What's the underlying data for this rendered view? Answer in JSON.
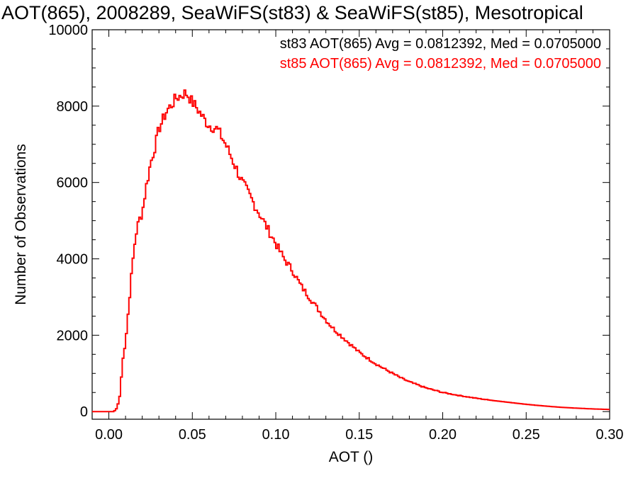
{
  "chart_data": {
    "type": "histogram",
    "title": "AOT(865), 2008289, SeaWiFS(st83) & SeaWiFS(st85), Mesotropical",
    "xlabel": "AOT ()",
    "ylabel": "Number of Observations",
    "xlim": [
      -0.01,
      0.3
    ],
    "ylim": [
      -200,
      10000
    ],
    "x_ticks": [
      0.0,
      0.05,
      0.1,
      0.15,
      0.2,
      0.25,
      0.3
    ],
    "x_tick_labels": [
      "0.00",
      "0.05",
      "0.10",
      "0.15",
      "0.20",
      "0.25",
      "0.30"
    ],
    "y_ticks": [
      0,
      2000,
      4000,
      6000,
      8000,
      10000
    ],
    "y_tick_labels": [
      "0",
      "2000",
      "4000",
      "6000",
      "8000",
      "10000"
    ],
    "grid": false,
    "annotations": [
      {
        "text": "st83 AOT(865) Avg = 0.0812392, Med = 0.0705000",
        "color": "#000000"
      },
      {
        "text": "st85 AOT(865) Avg = 0.0812392, Med = 0.0705000",
        "color": "#ff0000"
      }
    ],
    "series": [
      {
        "name": "st85",
        "color": "#ff0000",
        "x": [
          -0.01,
          0.0,
          0.003,
          0.005,
          0.007,
          0.008,
          0.01,
          0.012,
          0.014,
          0.016,
          0.018,
          0.02,
          0.022,
          0.025,
          0.028,
          0.03,
          0.033,
          0.035,
          0.038,
          0.04,
          0.042,
          0.044,
          0.046,
          0.048,
          0.05,
          0.052,
          0.055,
          0.058,
          0.06,
          0.065,
          0.07,
          0.075,
          0.08,
          0.085,
          0.09,
          0.095,
          0.1,
          0.105,
          0.11,
          0.115,
          0.12,
          0.125,
          0.13,
          0.135,
          0.14,
          0.145,
          0.15,
          0.155,
          0.16,
          0.165,
          0.17,
          0.175,
          0.18,
          0.185,
          0.19,
          0.195,
          0.2,
          0.21,
          0.22,
          0.23,
          0.24,
          0.25,
          0.26,
          0.27,
          0.28,
          0.29,
          0.3
        ],
        "y": [
          0,
          0,
          0,
          100,
          500,
          1300,
          1800,
          2800,
          3800,
          4600,
          5000,
          5200,
          5800,
          6500,
          7000,
          7400,
          7700,
          7900,
          8050,
          8200,
          8250,
          8300,
          8350,
          8250,
          8100,
          8000,
          7800,
          7600,
          7500,
          7400,
          7000,
          6500,
          6000,
          5600,
          5200,
          4800,
          4400,
          4000,
          3700,
          3300,
          3000,
          2700,
          2400,
          2150,
          1950,
          1750,
          1550,
          1400,
          1250,
          1120,
          1000,
          880,
          780,
          700,
          620,
          560,
          500,
          420,
          350,
          290,
          240,
          190,
          150,
          115,
          90,
          70,
          55
        ]
      }
    ]
  }
}
